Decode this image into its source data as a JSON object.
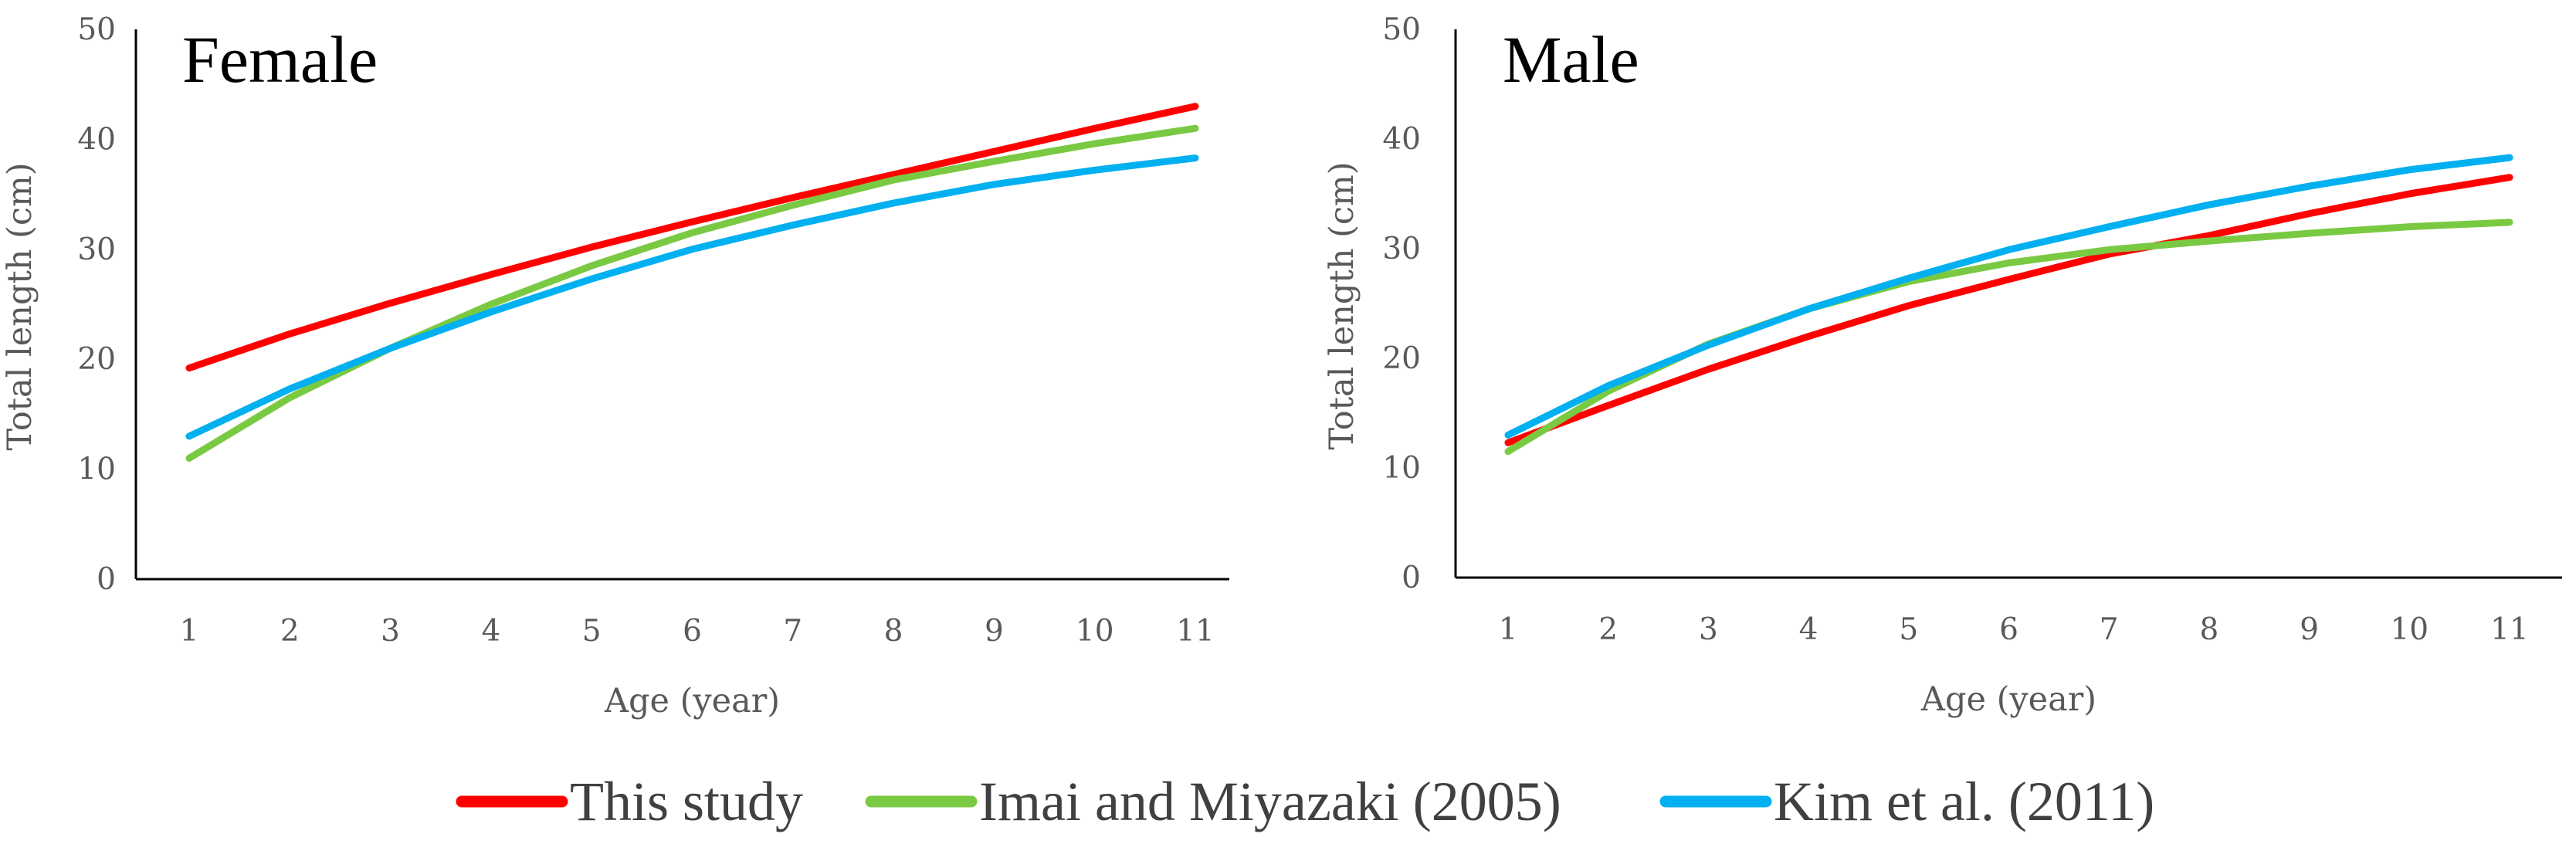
{
  "colors": {
    "this_study": "#ff0000",
    "imai": "#7ac943",
    "kim": "#00b0f0",
    "axis": "#000000",
    "tick_text": "#595959"
  },
  "legend": {
    "items": [
      {
        "key": "this_study",
        "label": "This study"
      },
      {
        "key": "imai",
        "label": "Imai and Miyazaki (2005)"
      },
      {
        "key": "kim",
        "label": "Kim et al. (2011)"
      }
    ]
  },
  "chart_data": [
    {
      "type": "line",
      "title": "Female",
      "xlabel": "Age (year)",
      "ylabel": "Total length (cm)",
      "ylim": [
        0,
        50
      ],
      "yticks": [
        "0",
        "10",
        "20",
        "30",
        "40",
        "50"
      ],
      "categories": [
        "1",
        "2",
        "3",
        "4",
        "5",
        "6",
        "7",
        "8",
        "9",
        "10",
        "11"
      ],
      "series": [
        {
          "key": "this_study",
          "name": "This study",
          "values": [
            19.2,
            22.3,
            25.1,
            27.7,
            30.2,
            32.5,
            34.7,
            36.8,
            38.9,
            41.0,
            43.0
          ]
        },
        {
          "key": "imai",
          "name": "Imai and Miyazaki (2005)",
          "values": [
            11.0,
            16.5,
            21.0,
            25.0,
            28.5,
            31.5,
            34.0,
            36.3,
            38.0,
            39.6,
            41.0
          ]
        },
        {
          "key": "kim",
          "name": "Kim et al. (2011)",
          "values": [
            13.0,
            17.3,
            21.0,
            24.3,
            27.3,
            30.0,
            32.2,
            34.2,
            35.9,
            37.2,
            38.3
          ]
        }
      ]
    },
    {
      "type": "line",
      "title": "Male",
      "xlabel": "Age (year)",
      "ylabel": "Total length (cm)",
      "ylim": [
        0,
        50
      ],
      "yticks": [
        "0",
        "10",
        "20",
        "30",
        "40",
        "50"
      ],
      "categories": [
        "1",
        "2",
        "3",
        "4",
        "5",
        "6",
        "7",
        "8",
        "9",
        "10",
        "11"
      ],
      "series": [
        {
          "key": "this_study",
          "name": "This study",
          "values": [
            12.3,
            15.7,
            19.0,
            22.0,
            24.8,
            27.2,
            29.5,
            31.2,
            33.2,
            35.0,
            36.5
          ]
        },
        {
          "key": "imai",
          "name": "Imai and Miyazaki (2005)",
          "values": [
            11.5,
            17.0,
            21.3,
            24.5,
            27.0,
            28.7,
            29.9,
            30.7,
            31.4,
            32.0,
            32.4
          ]
        },
        {
          "key": "kim",
          "name": "Kim et al. (2011)",
          "values": [
            13.0,
            17.5,
            21.2,
            24.5,
            27.3,
            29.9,
            32.0,
            34.0,
            35.7,
            37.2,
            38.3
          ]
        }
      ]
    }
  ]
}
